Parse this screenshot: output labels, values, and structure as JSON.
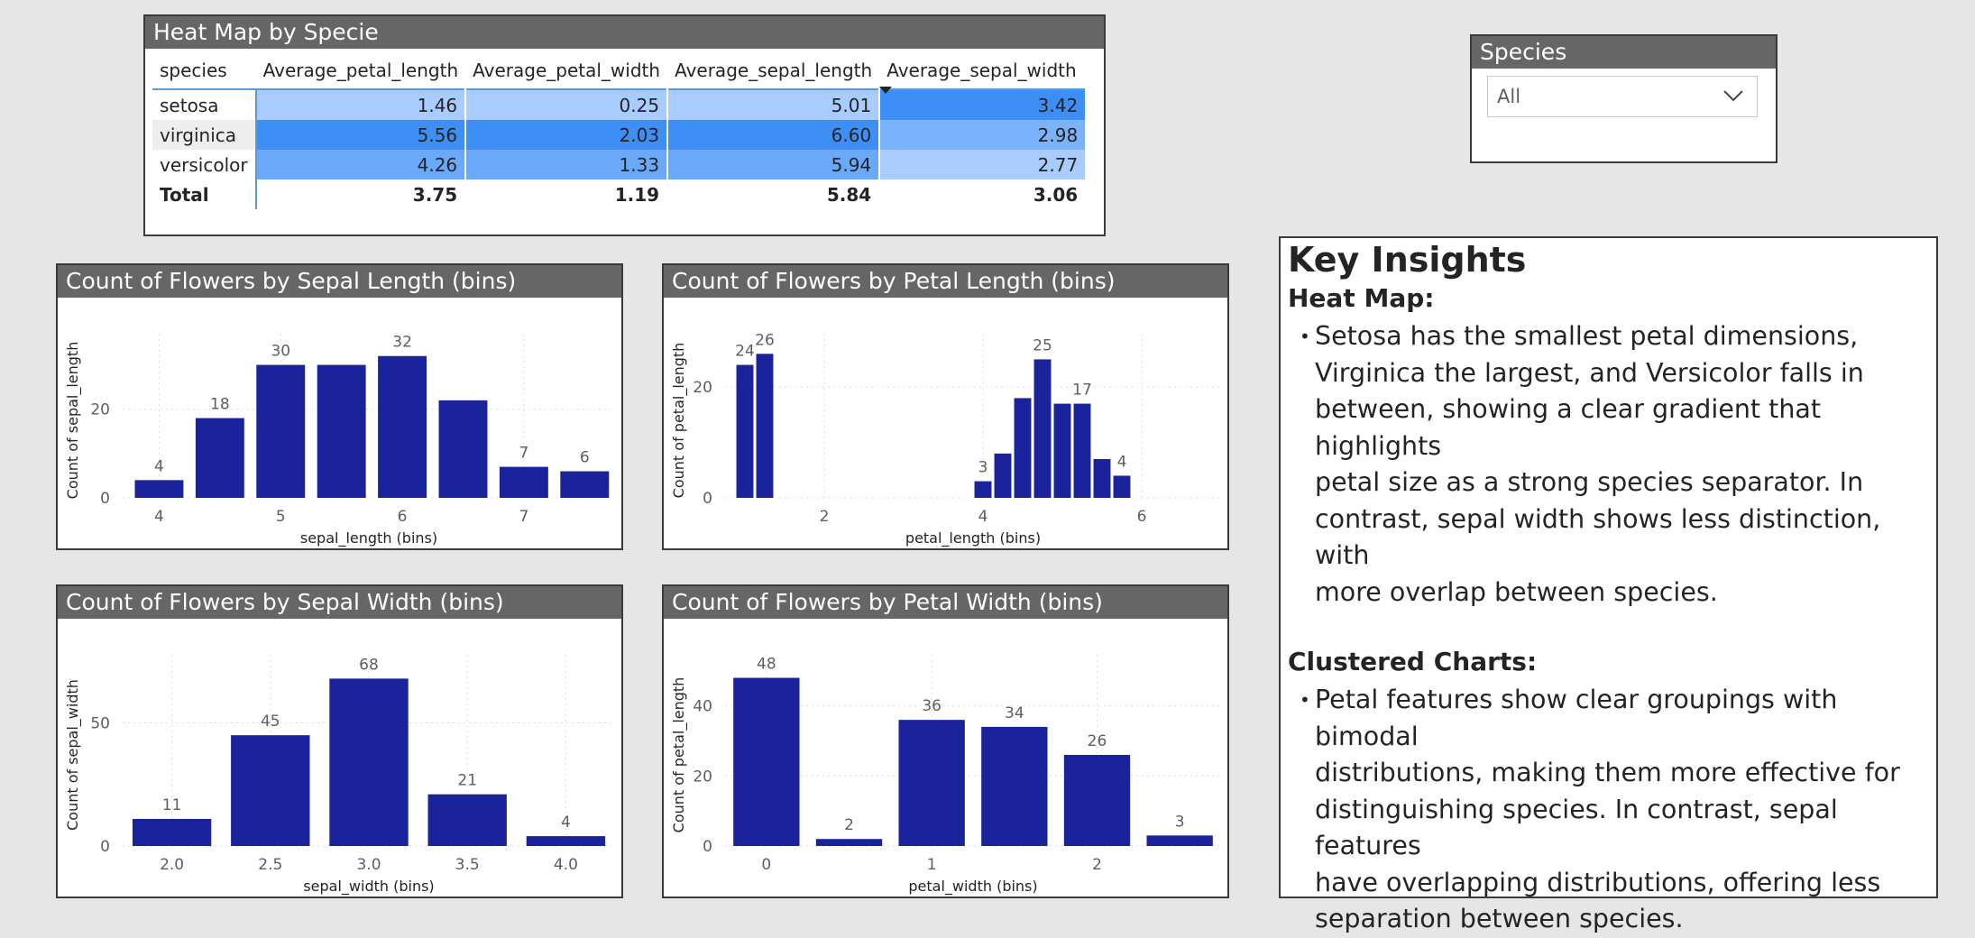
{
  "heatmap": {
    "title": "Heat Map by Specie",
    "columns": [
      "species",
      "Average_petal_length",
      "Average_petal_width",
      "Average_sepal_length",
      "Average_sepal_width"
    ],
    "rows": [
      {
        "species": "setosa",
        "values": [
          "1.46",
          "0.25",
          "5.01",
          "3.42"
        ],
        "colors": [
          "#a8ccff",
          "#a8ccff",
          "#a8ccff",
          "#3d8ef5"
        ]
      },
      {
        "species": "virginica",
        "values": [
          "5.56",
          "2.03",
          "6.60",
          "2.98"
        ],
        "colors": [
          "#3d8ef5",
          "#3d8ef5",
          "#3d8ef5",
          "#7ab2fb"
        ]
      },
      {
        "species": "versicolor",
        "values": [
          "4.26",
          "1.33",
          "5.94",
          "2.77"
        ],
        "colors": [
          "#6aa8fa",
          "#6aa8fa",
          "#6aa8fa",
          "#a8ccff"
        ]
      }
    ],
    "total": {
      "label": "Total",
      "values": [
        "3.75",
        "1.19",
        "5.84",
        "3.06"
      ]
    }
  },
  "slicer": {
    "title": "Species",
    "selected": "All"
  },
  "colors": {
    "bar": "#1a239c",
    "header": "#666666",
    "accent": "#5b9bd5"
  },
  "charts": {
    "sepal_length": {
      "title": "Count of Flowers by Sepal Length (bins)"
    },
    "petal_length": {
      "title": "Count of Flowers by Petal Length (bins)"
    },
    "sepal_width": {
      "title": "Count of Flowers by Sepal Width (bins)"
    },
    "petal_width": {
      "title": "Count of Flowers by Petal Width (bins)"
    }
  },
  "chart_data": [
    {
      "type": "bar",
      "title": "Count of Flowers by Sepal Length (bins)",
      "xlabel": "sepal_length (bins)",
      "ylabel": "Count of sepal_length",
      "x": [
        4.0,
        4.5,
        5.0,
        5.5,
        6.0,
        6.5,
        7.0,
        7.5
      ],
      "values": [
        4,
        18,
        30,
        30,
        32,
        22,
        7,
        6
      ],
      "data_labels": [
        "4",
        "18",
        "30",
        "",
        "32",
        "",
        "7",
        "6"
      ],
      "xticks": [
        "4",
        "5",
        "6",
        "7"
      ],
      "xtick_values": [
        4,
        5,
        6,
        7
      ],
      "yticks": [
        0,
        20
      ],
      "ylim": [
        0,
        35
      ],
      "xlim": [
        3.7,
        7.75
      ]
    },
    {
      "type": "bar",
      "title": "Count of Flowers by Petal Length (bins)",
      "xlabel": "petal_length (bins)",
      "ylabel": "Count of petal_length",
      "x": [
        1.0,
        1.25,
        3.0,
        3.25,
        3.5,
        3.75,
        4.0,
        4.25,
        4.5,
        4.75,
        5.0,
        5.25,
        5.5,
        5.75,
        6.0,
        6.25
      ],
      "values": [
        24,
        26,
        0,
        0,
        0,
        0,
        3,
        8,
        18,
        25,
        17,
        17,
        7,
        4,
        0,
        0
      ],
      "data_labels": [
        "24",
        "26",
        "",
        "",
        "",
        "",
        "3",
        "",
        "",
        "25",
        "",
        "17",
        "",
        "4",
        "",
        ""
      ],
      "xticks": [
        "2",
        "4",
        "6"
      ],
      "xtick_values": [
        2,
        4,
        6
      ],
      "yticks": [
        0,
        20
      ],
      "ylim": [
        0,
        28
      ],
      "xlim": [
        0.75,
        7.0
      ]
    },
    {
      "type": "bar",
      "title": "Count of Flowers by Sepal Width (bins)",
      "xlabel": "sepal_width (bins)",
      "ylabel": "Count of sepal_width",
      "x": [
        2.0,
        2.5,
        3.0,
        3.5,
        4.0
      ],
      "values": [
        11,
        45,
        68,
        21,
        4
      ],
      "data_labels": [
        "11",
        "45",
        "68",
        "21",
        "4"
      ],
      "xticks": [
        "2.0",
        "2.5",
        "3.0",
        "3.5",
        "4.0"
      ],
      "xtick_values": [
        2.0,
        2.5,
        3.0,
        3.5,
        4.0
      ],
      "yticks": [
        0,
        50
      ],
      "ylim": [
        0,
        74
      ],
      "xlim": [
        1.75,
        4.25
      ]
    },
    {
      "type": "bar",
      "title": "Count of Flowers by Petal Width (bins)",
      "xlabel": "petal_width (bins)",
      "ylabel": "Count of petal_length",
      "x": [
        0.0,
        0.5,
        1.0,
        1.5,
        2.0,
        2.5
      ],
      "values": [
        48,
        2,
        36,
        34,
        26,
        3
      ],
      "data_labels": [
        "48",
        "2",
        "36",
        "34",
        "26",
        "3"
      ],
      "xticks": [
        "0",
        "1",
        "2"
      ],
      "xtick_values": [
        0,
        1,
        2
      ],
      "yticks": [
        0,
        20,
        40
      ],
      "ylim": [
        0,
        52
      ],
      "xlim": [
        -0.25,
        2.75
      ]
    }
  ],
  "insights": {
    "title": "Key Insights",
    "sections": [
      {
        "heading": "Heat Map:",
        "lines": [
          "Setosa has the smallest petal dimensions,",
          "Virginica the largest, and Versicolor falls in",
          "between, showing a clear gradient that highlights",
          "petal size as a strong species separator. In",
          "contrast, sepal width shows less distinction, with",
          "more overlap between species."
        ]
      },
      {
        "heading": "Clustered Charts:",
        "lines": [
          "Petal features show clear groupings with bimodal",
          "distributions, making them more effective for",
          "distinguishing species. In contrast, sepal features",
          "have overlapping distributions, offering less",
          "separation between species."
        ]
      }
    ]
  }
}
